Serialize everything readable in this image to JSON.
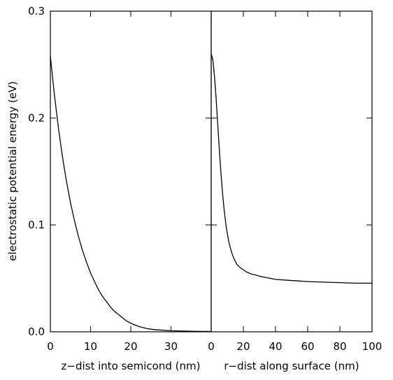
{
  "chart_data": [
    {
      "type": "line",
      "xlabel": "z−dist into semicond (nm)",
      "ylabel": "electrostatic potential energy (eV)",
      "xlim": [
        0,
        40
      ],
      "ylim": [
        0,
        0.3
      ],
      "xticks": [
        0,
        10,
        20,
        30
      ],
      "xtick_labels": [
        "0",
        "10",
        "20",
        "30"
      ],
      "yticks": [
        0.0,
        0.1,
        0.2,
        0.3
      ],
      "ytick_labels": [
        "0.0",
        "0.1",
        "0.2",
        "0.3"
      ],
      "grid": false,
      "series": [
        {
          "x": [
            0,
            1,
            2,
            3,
            4,
            5,
            6,
            7,
            8,
            9,
            10,
            11,
            12,
            13,
            14,
            15,
            16,
            17,
            18,
            19,
            20,
            22,
            24,
            26,
            28,
            30,
            32,
            34,
            36,
            38,
            40
          ],
          "y": [
            0.258,
            0.222,
            0.191,
            0.164,
            0.141,
            0.121,
            0.104,
            0.089,
            0.076,
            0.065,
            0.055,
            0.047,
            0.039,
            0.033,
            0.028,
            0.023,
            0.019,
            0.016,
            0.013,
            0.01,
            0.008,
            0.005,
            0.003,
            0.002,
            0.0015,
            0.001,
            0.0008,
            0.0006,
            0.0005,
            0.0004,
            0.0003
          ]
        }
      ]
    },
    {
      "type": "line",
      "xlabel": "r−dist along surface (nm)",
      "ylabel": "",
      "xlim": [
        0,
        100
      ],
      "ylim": [
        0,
        0.3
      ],
      "xticks": [
        0,
        20,
        40,
        60,
        80,
        100
      ],
      "xtick_labels": [
        "0",
        "20",
        "40",
        "60",
        "80",
        "100"
      ],
      "yticks": [
        0.0,
        0.1,
        0.2,
        0.3
      ],
      "ytick_labels": [],
      "grid": false,
      "series": [
        {
          "x": [
            0,
            1,
            2,
            3,
            4,
            5,
            6,
            7,
            8,
            9,
            10,
            11,
            12,
            13,
            14,
            15,
            16,
            18,
            20,
            22,
            25,
            28,
            30,
            35,
            40,
            45,
            50,
            55,
            60,
            70,
            80,
            90,
            100
          ],
          "y": [
            0.26,
            0.255,
            0.24,
            0.22,
            0.196,
            0.172,
            0.15,
            0.131,
            0.115,
            0.102,
            0.092,
            0.084,
            0.078,
            0.073,
            0.069,
            0.066,
            0.063,
            0.06,
            0.058,
            0.056,
            0.054,
            0.053,
            0.052,
            0.0505,
            0.049,
            0.0485,
            0.048,
            0.0475,
            0.047,
            0.0465,
            0.046,
            0.0455,
            0.0455
          ]
        }
      ]
    }
  ]
}
